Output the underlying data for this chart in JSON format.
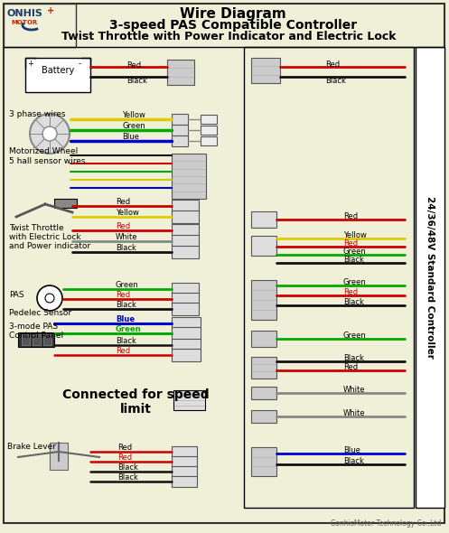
{
  "title1": "Wire Diagram",
  "title2": "3-speed PAS Compatible Controller",
  "title3": "Twist Throttle with Power Indicator and Electric Lock",
  "bg_color": "#f0f0d8",
  "border_color": "#333333",
  "footer": "ConhisMotor Technology Co.,Ltd",
  "side_label": "24/36/48V Standard Controller",
  "figsize": [
    4.97,
    5.9
  ],
  "dpi": 100
}
